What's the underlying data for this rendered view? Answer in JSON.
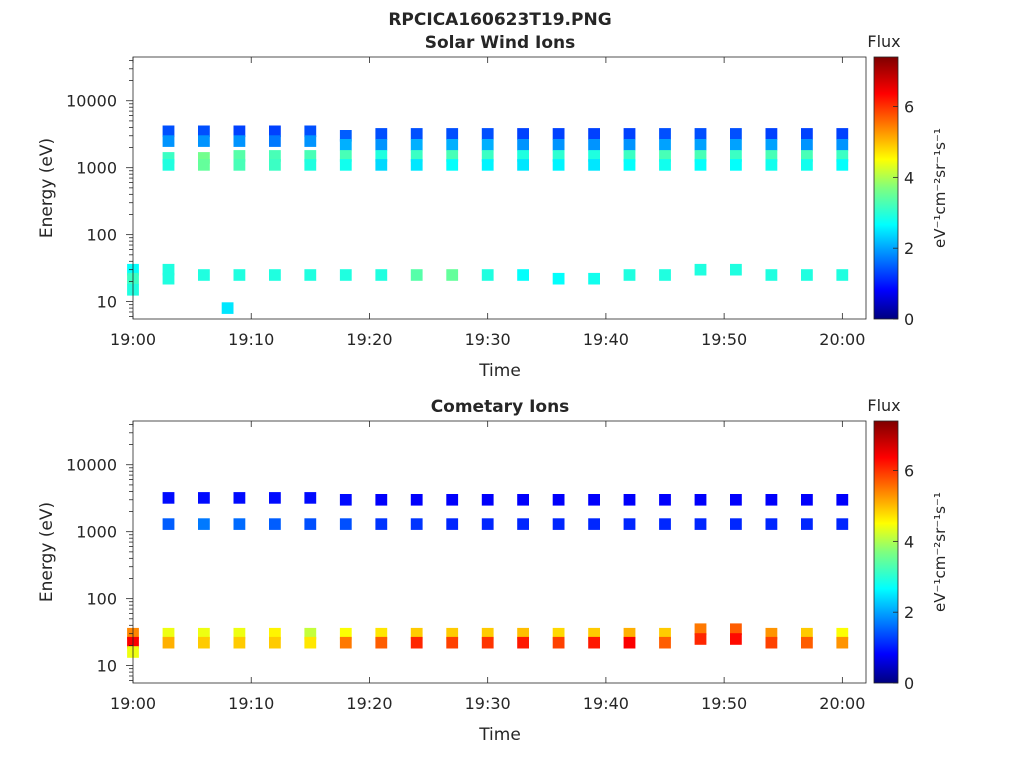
{
  "figure_title": "RPCICA160623T19.PNG",
  "colors": {
    "axis": "#262626",
    "background": "#ffffff",
    "colormap": "jet"
  },
  "chart_data": [
    {
      "type": "heatmap",
      "title": "Solar Wind Ions",
      "xlabel": "Time",
      "ylabel": "Energy (eV)",
      "y_scale": "log",
      "xlim": [
        "19:00",
        "20:02"
      ],
      "ylim": [
        5.5,
        45000
      ],
      "x_ticks": [
        "19:00",
        "19:10",
        "19:20",
        "19:30",
        "19:40",
        "19:50",
        "20:00"
      ],
      "y_ticks": [
        "10",
        "100",
        "1000",
        "10000"
      ],
      "colorbar": {
        "label": "Flux",
        "unit": "eV⁻¹cm⁻²sr⁻¹s⁻¹",
        "range": [
          0,
          7.4
        ],
        "ticks": [
          "0",
          "2",
          "4",
          "6"
        ]
      },
      "cells": [
        [
          "19:00",
          30,
          2.8
        ],
        [
          "19:00",
          22,
          3.2
        ],
        [
          "19:00",
          15,
          3.0
        ],
        [
          "19:03",
          3500,
          1.5
        ],
        [
          "19:03",
          2500,
          2.0
        ],
        [
          "19:03",
          1400,
          3.2
        ],
        [
          "19:03",
          1100,
          3.0
        ],
        [
          "19:03",
          30,
          3.0
        ],
        [
          "19:03",
          22,
          3.0
        ],
        [
          "19:06",
          3500,
          1.5
        ],
        [
          "19:06",
          2500,
          2.0
        ],
        [
          "19:06",
          1400,
          3.6
        ],
        [
          "19:06",
          1100,
          3.5
        ],
        [
          "19:06",
          25,
          3.0
        ],
        [
          "19:09",
          3500,
          1.4
        ],
        [
          "19:09",
          2500,
          2.0
        ],
        [
          "19:09",
          1500,
          3.4
        ],
        [
          "19:09",
          1100,
          3.3
        ],
        [
          "19:09",
          25,
          3.0
        ],
        [
          "19:08",
          8,
          2.6
        ],
        [
          "19:12",
          3500,
          1.4
        ],
        [
          "19:12",
          2500,
          1.8
        ],
        [
          "19:12",
          1500,
          3.3
        ],
        [
          "19:12",
          1100,
          3.2
        ],
        [
          "19:12",
          25,
          3.0
        ],
        [
          "19:15",
          3500,
          1.5
        ],
        [
          "19:15",
          2500,
          2.0
        ],
        [
          "19:15",
          1500,
          3.3
        ],
        [
          "19:15",
          1100,
          3.0
        ],
        [
          "19:15",
          25,
          3.0
        ],
        [
          "19:18",
          3000,
          1.6
        ],
        [
          "19:18",
          2200,
          2.2
        ],
        [
          "19:18",
          1500,
          3.3
        ],
        [
          "19:18",
          1100,
          2.9
        ],
        [
          "19:18",
          25,
          3.0
        ],
        [
          "19:21",
          3200,
          1.5
        ],
        [
          "19:21",
          2200,
          2.0
        ],
        [
          "19:21",
          1500,
          3.0
        ],
        [
          "19:21",
          1100,
          2.5
        ],
        [
          "19:21",
          25,
          3.0
        ],
        [
          "19:24",
          3200,
          1.5
        ],
        [
          "19:24",
          2200,
          2.2
        ],
        [
          "19:24",
          1500,
          3.2
        ],
        [
          "19:24",
          1100,
          2.6
        ],
        [
          "19:24",
          25,
          3.4
        ],
        [
          "19:27",
          3200,
          1.5
        ],
        [
          "19:27",
          2200,
          2.2
        ],
        [
          "19:27",
          1500,
          3.3
        ],
        [
          "19:27",
          1100,
          2.8
        ],
        [
          "19:27",
          25,
          3.5
        ],
        [
          "19:30",
          3200,
          1.5
        ],
        [
          "19:30",
          2200,
          2.2
        ],
        [
          "19:30",
          1500,
          3.2
        ],
        [
          "19:30",
          1100,
          2.7
        ],
        [
          "19:30",
          25,
          3.0
        ],
        [
          "19:33",
          3200,
          1.4
        ],
        [
          "19:33",
          2200,
          2.0
        ],
        [
          "19:33",
          1500,
          3.0
        ],
        [
          "19:33",
          1100,
          2.6
        ],
        [
          "19:33",
          25,
          2.8
        ],
        [
          "19:36",
          3200,
          1.4
        ],
        [
          "19:36",
          2200,
          2.0
        ],
        [
          "19:36",
          1500,
          3.1
        ],
        [
          "19:36",
          1100,
          2.7
        ],
        [
          "19:36",
          22,
          2.8
        ],
        [
          "19:39",
          3200,
          1.4
        ],
        [
          "19:39",
          2200,
          2.0
        ],
        [
          "19:39",
          1500,
          3.0
        ],
        [
          "19:39",
          1100,
          2.6
        ],
        [
          "19:39",
          22,
          2.9
        ],
        [
          "19:42",
          3200,
          1.4
        ],
        [
          "19:42",
          2200,
          2.0
        ],
        [
          "19:42",
          1500,
          3.2
        ],
        [
          "19:42",
          1100,
          2.8
        ],
        [
          "19:42",
          25,
          3.0
        ],
        [
          "19:45",
          3200,
          1.5
        ],
        [
          "19:45",
          2200,
          2.1
        ],
        [
          "19:45",
          1500,
          3.3
        ],
        [
          "19:45",
          1100,
          2.9
        ],
        [
          "19:45",
          25,
          3.0
        ],
        [
          "19:48",
          3200,
          1.5
        ],
        [
          "19:48",
          2200,
          2.1
        ],
        [
          "19:48",
          1500,
          3.3
        ],
        [
          "19:48",
          1100,
          2.8
        ],
        [
          "19:48",
          30,
          3.0
        ],
        [
          "19:51",
          3200,
          1.5
        ],
        [
          "19:51",
          2200,
          2.1
        ],
        [
          "19:51",
          1500,
          3.2
        ],
        [
          "19:51",
          1100,
          2.8
        ],
        [
          "19:51",
          30,
          3.0
        ],
        [
          "19:54",
          3200,
          1.4
        ],
        [
          "19:54",
          2200,
          2.1
        ],
        [
          "19:54",
          1500,
          3.3
        ],
        [
          "19:54",
          1100,
          2.9
        ],
        [
          "19:54",
          25,
          3.0
        ],
        [
          "19:57",
          3200,
          1.4
        ],
        [
          "19:57",
          2200,
          2.0
        ],
        [
          "19:57",
          1500,
          3.3
        ],
        [
          "19:57",
          1100,
          2.9
        ],
        [
          "19:57",
          25,
          3.0
        ],
        [
          "20:00",
          3200,
          1.4
        ],
        [
          "20:00",
          2200,
          2.0
        ],
        [
          "20:00",
          1500,
          3.2
        ],
        [
          "20:00",
          1100,
          2.8
        ],
        [
          "20:00",
          25,
          3.0
        ]
      ]
    },
    {
      "type": "heatmap",
      "title": "Cometary Ions",
      "xlabel": "Time",
      "ylabel": "Energy (eV)",
      "y_scale": "log",
      "xlim": [
        "19:00",
        "20:02"
      ],
      "ylim": [
        5.5,
        45000
      ],
      "x_ticks": [
        "19:00",
        "19:10",
        "19:20",
        "19:30",
        "19:40",
        "19:50",
        "20:00"
      ],
      "y_ticks": [
        "10",
        "100",
        "1000",
        "10000"
      ],
      "colorbar": {
        "label": "Flux",
        "unit": "eV⁻¹cm⁻²sr⁻¹s⁻¹",
        "range": [
          0,
          7.4
        ],
        "ticks": [
          "0",
          "2",
          "4",
          "6"
        ]
      },
      "cells": [
        [
          "19:00",
          30,
          5.5
        ],
        [
          "19:00",
          22,
          6.5
        ],
        [
          "19:00",
          16,
          4.5
        ],
        [
          "19:03",
          3200,
          1.0
        ],
        [
          "19:03",
          1300,
          1.6
        ],
        [
          "19:03",
          30,
          4.5
        ],
        [
          "19:03",
          22,
          5.2
        ],
        [
          "19:06",
          3200,
          1.0
        ],
        [
          "19:06",
          1300,
          1.8
        ],
        [
          "19:06",
          30,
          4.5
        ],
        [
          "19:06",
          22,
          5.0
        ],
        [
          "19:09",
          3200,
          1.0
        ],
        [
          "19:09",
          1300,
          1.7
        ],
        [
          "19:09",
          30,
          4.5
        ],
        [
          "19:09",
          22,
          5.0
        ],
        [
          "19:12",
          3200,
          1.0
        ],
        [
          "19:12",
          1300,
          1.6
        ],
        [
          "19:12",
          30,
          4.7
        ],
        [
          "19:12",
          22,
          5.0
        ],
        [
          "19:15",
          3200,
          1.0
        ],
        [
          "19:15",
          1300,
          1.5
        ],
        [
          "19:15",
          30,
          4.2
        ],
        [
          "19:15",
          22,
          4.8
        ],
        [
          "19:18",
          3000,
          1.0
        ],
        [
          "19:18",
          1300,
          1.5
        ],
        [
          "19:18",
          30,
          4.6
        ],
        [
          "19:18",
          22,
          5.6
        ],
        [
          "19:21",
          3000,
          0.9
        ],
        [
          "19:21",
          1300,
          1.3
        ],
        [
          "19:21",
          30,
          4.8
        ],
        [
          "19:21",
          22,
          5.8
        ],
        [
          "19:24",
          3000,
          0.9
        ],
        [
          "19:24",
          1300,
          1.3
        ],
        [
          "19:24",
          30,
          5.0
        ],
        [
          "19:24",
          22,
          6.2
        ],
        [
          "19:27",
          3000,
          0.9
        ],
        [
          "19:27",
          1300,
          1.2
        ],
        [
          "19:27",
          30,
          5.0
        ],
        [
          "19:27",
          22,
          6.0
        ],
        [
          "19:30",
          3000,
          0.9
        ],
        [
          "19:30",
          1300,
          1.2
        ],
        [
          "19:30",
          30,
          5.0
        ],
        [
          "19:30",
          22,
          6.1
        ],
        [
          "19:33",
          3000,
          0.9
        ],
        [
          "19:33",
          1300,
          1.2
        ],
        [
          "19:33",
          30,
          5.1
        ],
        [
          "19:33",
          22,
          6.3
        ],
        [
          "19:36",
          3000,
          0.9
        ],
        [
          "19:36",
          1300,
          1.2
        ],
        [
          "19:36",
          30,
          4.9
        ],
        [
          "19:36",
          22,
          6.0
        ],
        [
          "19:39",
          3000,
          0.9
        ],
        [
          "19:39",
          1300,
          1.2
        ],
        [
          "19:39",
          30,
          5.0
        ],
        [
          "19:39",
          22,
          6.3
        ],
        [
          "19:42",
          3000,
          0.9
        ],
        [
          "19:42",
          1300,
          1.2
        ],
        [
          "19:42",
          30,
          5.2
        ],
        [
          "19:42",
          22,
          6.5
        ],
        [
          "19:45",
          3000,
          0.9
        ],
        [
          "19:45",
          1300,
          1.2
        ],
        [
          "19:45",
          30,
          5.0
        ],
        [
          "19:45",
          22,
          5.8
        ],
        [
          "19:48",
          3000,
          0.9
        ],
        [
          "19:48",
          1300,
          1.2
        ],
        [
          "19:48",
          35,
          5.6
        ],
        [
          "19:48",
          25,
          6.2
        ],
        [
          "19:51",
          3000,
          0.9
        ],
        [
          "19:51",
          1300,
          1.2
        ],
        [
          "19:51",
          35,
          5.8
        ],
        [
          "19:51",
          25,
          6.4
        ],
        [
          "19:54",
          3000,
          0.9
        ],
        [
          "19:54",
          1300,
          1.2
        ],
        [
          "19:54",
          30,
          5.4
        ],
        [
          "19:54",
          22,
          6.0
        ],
        [
          "19:57",
          3000,
          0.9
        ],
        [
          "19:57",
          1300,
          1.2
        ],
        [
          "19:57",
          30,
          5.0
        ],
        [
          "19:57",
          22,
          5.8
        ],
        [
          "20:00",
          3000,
          0.9
        ],
        [
          "20:00",
          1300,
          1.2
        ],
        [
          "20:00",
          30,
          4.6
        ],
        [
          "20:00",
          22,
          5.4
        ]
      ]
    }
  ]
}
